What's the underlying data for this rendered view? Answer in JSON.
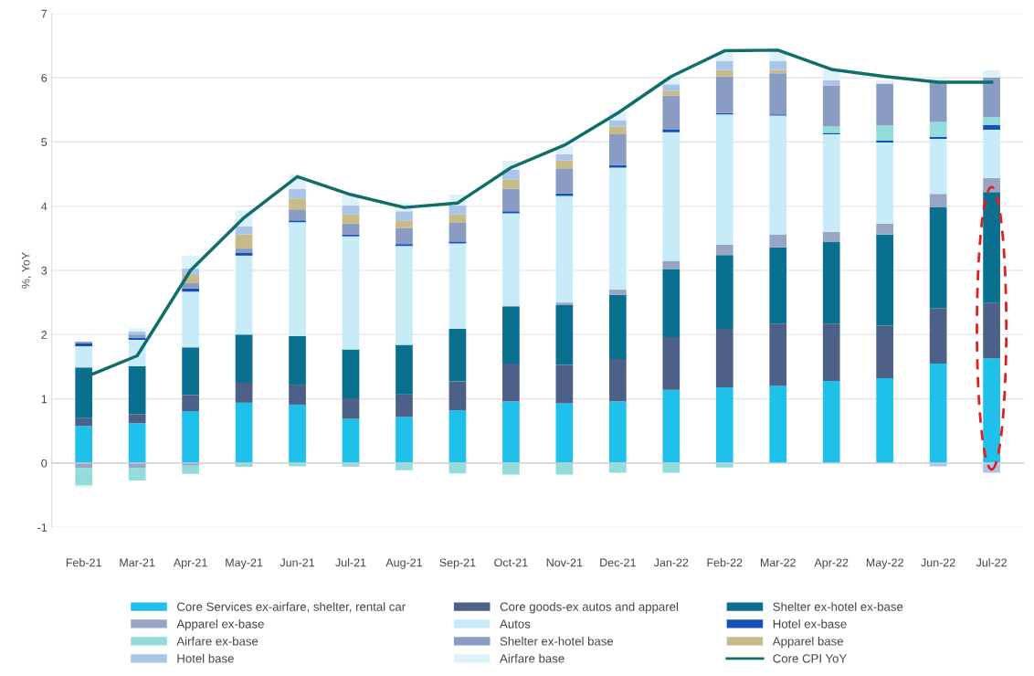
{
  "chart_data": {
    "type": "bar",
    "stacked": true,
    "ylabel": "%, YoY",
    "categories": [
      "Feb-21",
      "Mar-21",
      "Apr-21",
      "May-21",
      "Jun-21",
      "Jul-21",
      "Aug-21",
      "Sep-21",
      "Oct-21",
      "Nov-21",
      "Dec-21",
      "Jan-22",
      "Feb-22",
      "Mar-22",
      "Apr-22",
      "May-22",
      "Jun-22",
      "Jul-22"
    ],
    "ylim": [
      -1,
      7
    ],
    "yticks": [
      -1,
      0,
      1,
      2,
      3,
      4,
      5,
      6,
      7
    ],
    "grid": "y",
    "legend": "bottom",
    "series": [
      {
        "name": "Core Services ex-airfare, shelter, rental car",
        "color": "#1fc0ea",
        "values": [
          0.58,
          0.62,
          0.81,
          0.94,
          0.91,
          0.69,
          0.72,
          0.82,
          0.96,
          0.93,
          0.96,
          1.14,
          1.18,
          1.2,
          1.28,
          1.32,
          1.55,
          1.63
        ]
      },
      {
        "name": "Core goods-ex autos and apparel",
        "color": "#4d6088",
        "values": [
          0.12,
          0.14,
          0.25,
          0.31,
          0.31,
          0.32,
          0.35,
          0.45,
          0.59,
          0.6,
          0.66,
          0.82,
          0.91,
          0.97,
          0.89,
          0.82,
          0.86,
          0.86
        ]
      },
      {
        "name": "Shelter ex-hotel ex-base",
        "color": "#0a7090",
        "values": [
          0.79,
          0.75,
          0.74,
          0.75,
          0.76,
          0.76,
          0.77,
          0.82,
          0.89,
          0.93,
          1.0,
          1.06,
          1.15,
          1.19,
          1.27,
          1.42,
          1.57,
          1.73
        ]
      },
      {
        "name": "Apparel ex-base",
        "color": "#98a5c5",
        "values": [
          -0.08,
          -0.08,
          -0.04,
          0,
          0,
          0,
          0,
          0,
          0,
          0.04,
          0.08,
          0.13,
          0.16,
          0.2,
          0.16,
          0.17,
          0.21,
          0.22
        ]
      },
      {
        "name": "Autos",
        "color": "#c8ecf7",
        "values": [
          0.33,
          0.41,
          0.87,
          1.23,
          1.77,
          1.76,
          1.54,
          1.33,
          1.45,
          1.66,
          1.9,
          2.0,
          2.03,
          1.85,
          1.52,
          1.26,
          0.86,
          0.75
        ]
      },
      {
        "name": "Hotel ex-base",
        "color": "#1450b8",
        "values": [
          0.05,
          0.03,
          0.05,
          0.04,
          0.03,
          0.03,
          0.03,
          0.03,
          0.03,
          0.04,
          0.04,
          0.04,
          0.02,
          0.02,
          0.02,
          0.03,
          0.03,
          0.07
        ]
      },
      {
        "name": "Airfare ex-base",
        "color": "#92dcdc",
        "values": [
          -0.27,
          -0.19,
          -0.13,
          -0.06,
          -0.05,
          -0.06,
          -0.11,
          -0.16,
          -0.18,
          -0.18,
          -0.15,
          -0.15,
          -0.07,
          0,
          0.1,
          0.24,
          0.23,
          0.13
        ]
      },
      {
        "name": "Shelter ex-hotel base",
        "color": "#8a9cc4",
        "values": [
          0.02,
          0.05,
          0.08,
          0.07,
          0.17,
          0.17,
          0.25,
          0.29,
          0.35,
          0.38,
          0.48,
          0.53,
          0.57,
          0.64,
          0.64,
          0.65,
          0.63,
          0.61
        ]
      },
      {
        "name": "Apparel base",
        "color": "#c8bb8a",
        "values": [
          0,
          0,
          0.13,
          0.22,
          0.17,
          0.15,
          0.12,
          0.13,
          0.15,
          0.13,
          0.12,
          0.08,
          0.1,
          0.05,
          0,
          0,
          0,
          0
        ]
      },
      {
        "name": "Hotel base",
        "color": "#a9c6ea",
        "values": [
          0,
          0.05,
          0.1,
          0.13,
          0.15,
          0.13,
          0.14,
          0.14,
          0.15,
          0.1,
          0.1,
          0.1,
          0.14,
          0.14,
          0.08,
          0,
          -0.05,
          -0.15
        ]
      },
      {
        "name": "Airfare base",
        "color": "#dff1f8",
        "values": [
          -0.03,
          0.05,
          0.2,
          0.24,
          0.22,
          0.17,
          0.13,
          0.17,
          0.14,
          0.12,
          0.14,
          0.12,
          0.13,
          0.16,
          0.16,
          0.05,
          0.05,
          0.12
        ]
      },
      {
        "name": "Core CPI YoY",
        "type": "line",
        "color": "#0f6e6a",
        "values": [
          1.33,
          1.67,
          3.0,
          3.82,
          4.46,
          4.18,
          3.98,
          4.05,
          4.6,
          4.95,
          5.45,
          6.02,
          6.42,
          6.43,
          6.13,
          6.02,
          5.93,
          5.93
        ]
      }
    ]
  }
}
